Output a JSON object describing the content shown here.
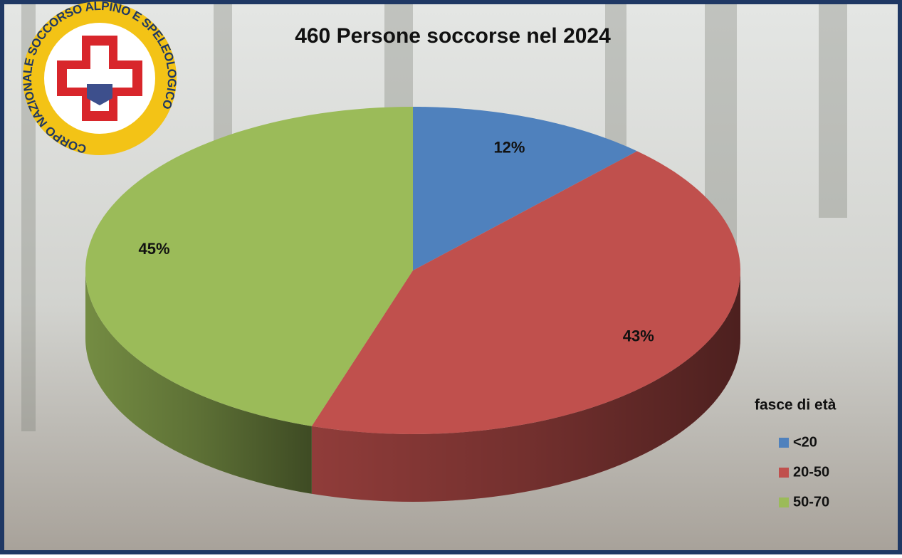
{
  "chart_data": {
    "type": "pie3d",
    "title": "460 Persone soccorse nel 2024",
    "logo_text": "CORPO NAZIONALE SOCCORSO ALPINO E SPELEOLOGICO",
    "legend_title": "fasce di età",
    "legend": "right",
    "categories": [
      "<20",
      "20-50",
      "50-70"
    ],
    "values": [
      12,
      43,
      45
    ],
    "value_labels": [
      "12%",
      "43%",
      "45%"
    ],
    "colors": [
      "#4f81bd",
      "#c0504d",
      "#9bbb59"
    ]
  }
}
